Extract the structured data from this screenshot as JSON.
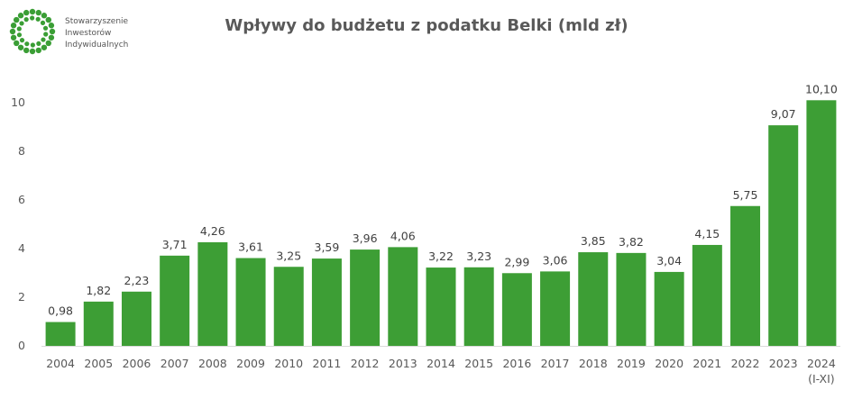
{
  "logo": {
    "name": "logo-sii",
    "lines": [
      "Stowarzyszenie",
      "Inwestorów",
      "Indywidualnych"
    ],
    "color": "#3a9e35"
  },
  "chart_data": {
    "type": "bar",
    "title": "Wpływy do budżetu z podatku Belki (mld zł)",
    "categories": [
      "2004",
      "2005",
      "2006",
      "2007",
      "2008",
      "2009",
      "2010",
      "2011",
      "2012",
      "2013",
      "2014",
      "2015",
      "2016",
      "2017",
      "2018",
      "2019",
      "2020",
      "2021",
      "2022",
      "2023",
      "2024"
    ],
    "category_sublabels": {
      "2024": "(I-XI)"
    },
    "values": [
      0.98,
      1.82,
      2.23,
      3.71,
      4.26,
      3.61,
      3.25,
      3.59,
      3.96,
      4.06,
      3.22,
      3.23,
      2.99,
      3.06,
      3.85,
      3.82,
      3.04,
      4.15,
      5.75,
      9.07,
      10.1
    ],
    "value_labels": [
      "0,98",
      "1,82",
      "2,23",
      "3,71",
      "4,26",
      "3,61",
      "3,25",
      "3,59",
      "3,96",
      "4,06",
      "3,22",
      "3,23",
      "2,99",
      "3,06",
      "3,85",
      "3,82",
      "3,04",
      "4,15",
      "5,75",
      "9,07",
      "10,10"
    ],
    "yticks": [
      0,
      2,
      4,
      6,
      8,
      10
    ],
    "ylim": [
      0,
      10.6
    ],
    "grid": false,
    "bar_color": "#3d9e35"
  }
}
